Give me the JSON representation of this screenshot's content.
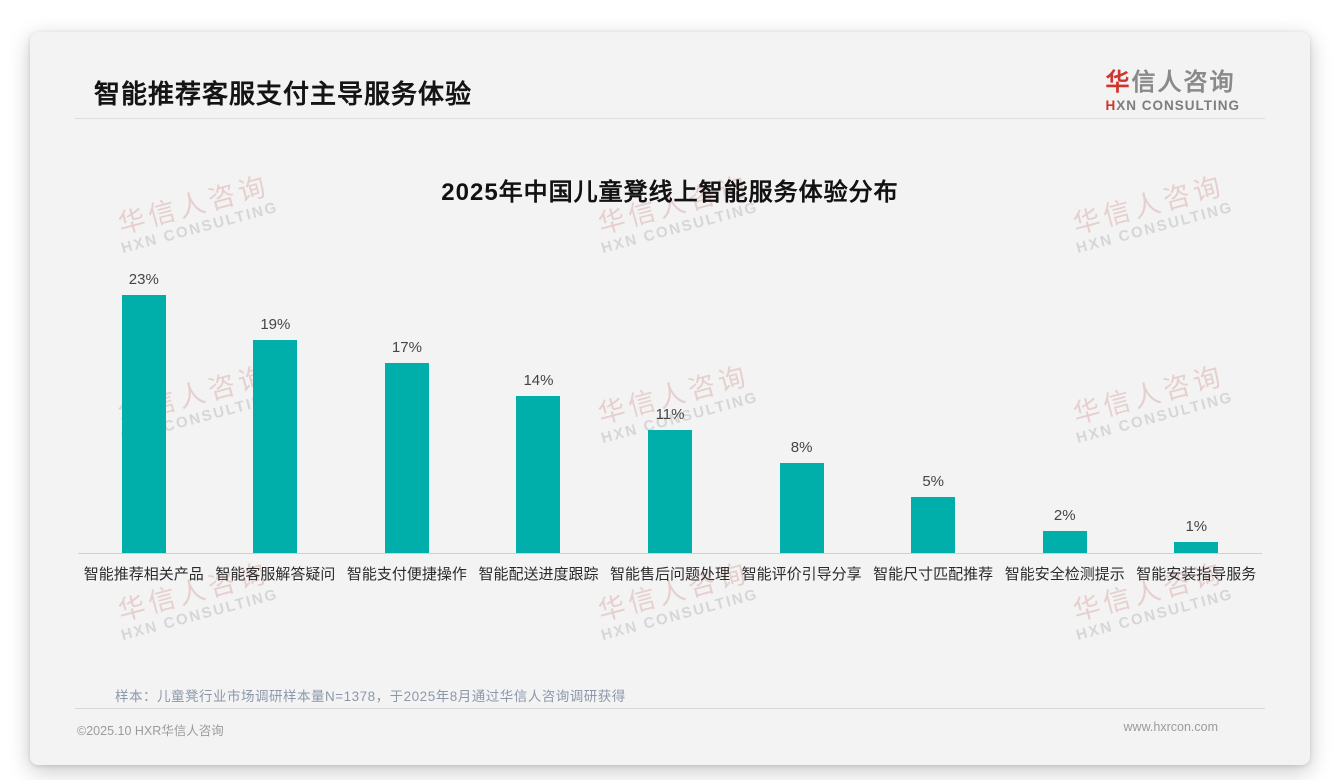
{
  "page": {
    "header": {
      "title": "智能推荐客服支付主导服务体验"
    },
    "logo": {
      "cn_red": "华",
      "cn_gray": "信人咨询",
      "en_red": "H",
      "en_gray": "XN CONSULTING"
    },
    "note": "样本：儿童凳行业市场调研样本量N=1378，于2025年8月通过华信人咨询调研获得",
    "footer": {
      "left": "©2025.10 HXR华信人咨询",
      "right": "www.hxrcon.com"
    },
    "watermark": {
      "cn": "华信人咨询",
      "en": "HXN CONSULTING"
    }
  },
  "chart_data": {
    "type": "bar",
    "title": "2025年中国儿童凳线上智能服务体验分布",
    "categories": [
      "智能推荐相关产品",
      "智能客服解答疑问",
      "智能支付便捷操作",
      "智能配送进度跟踪",
      "智能售后问题处理",
      "智能评价引导分享",
      "智能尺寸匹配推荐",
      "智能安全检测提示",
      "智能安装指导服务"
    ],
    "values": [
      23,
      19,
      17,
      14,
      11,
      8,
      5,
      2,
      1
    ],
    "value_labels": [
      "23%",
      "19%",
      "17%",
      "14%",
      "11%",
      "8%",
      "5%",
      "2%",
      "1%"
    ],
    "unit": "%",
    "bar_color": "#00AFA9",
    "ylim": [
      0,
      25
    ],
    "grid": false,
    "legend": null,
    "xlabel": "",
    "ylabel": ""
  }
}
